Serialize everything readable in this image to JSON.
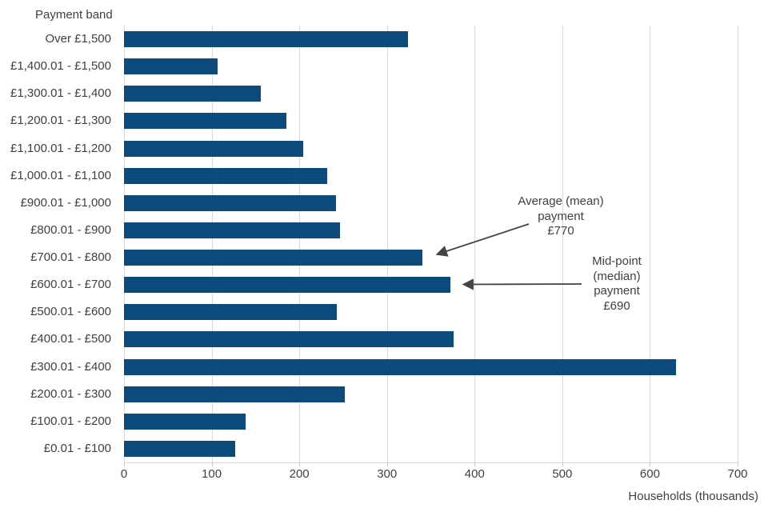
{
  "chart_data": {
    "type": "bar",
    "orientation": "horizontal",
    "title": "Payment band",
    "xlabel": "Households (thousands)",
    "ylabel": "Payment band",
    "xlim": [
      0,
      700
    ],
    "xticks": [
      0,
      100,
      200,
      300,
      400,
      500,
      600,
      700
    ],
    "grid": "vertical-light-gray",
    "legend": "none",
    "bar_color": "#0d4b7c",
    "gridline_color": "#d9d9d9",
    "text_color": "#404040",
    "categories": [
      "Over £1,500",
      "£1,400.01 - £1,500",
      "£1,300.01 - £1,400",
      "£1,200.01 - £1,300",
      "£1,100.01 - £1,200",
      "£1,000.01 - £1,100",
      "£900.01 - £1,000",
      "£800.01 - £900",
      "£700.01 - £800",
      "£600.01 - £700",
      "£500.01 - £600",
      "£400.01 - £500",
      "£300.01 - £400",
      "£200.01 - £300",
      "£100.01 - £200",
      "£0.01 - £100"
    ],
    "values": [
      324,
      107,
      156,
      185,
      204,
      232,
      242,
      246,
      340,
      372,
      243,
      376,
      630,
      252,
      139,
      127
    ],
    "annotations": [
      {
        "id": "mean",
        "lines": [
          "Average (mean)",
          "payment",
          "£770"
        ],
        "value": 770,
        "points_to_category": "£700.01 - £800"
      },
      {
        "id": "median",
        "lines": [
          "Mid-point",
          "(median)",
          "payment",
          "£690"
        ],
        "value": 690,
        "points_to_category": "£600.01 - £700"
      }
    ]
  }
}
